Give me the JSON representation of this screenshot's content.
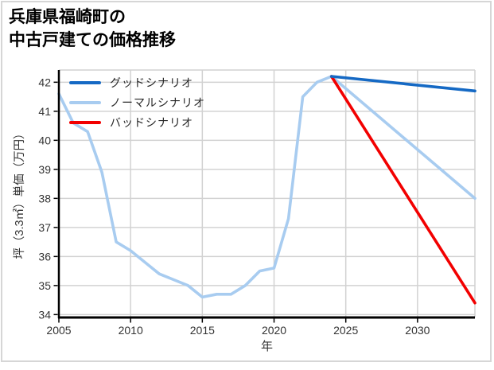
{
  "title": {
    "line1": "兵庫県福崎町の",
    "line2": "中古戸建ての価格推移"
  },
  "colors": {
    "grid": "#d2d2d2",
    "spine": "#000000",
    "minor_spine": "#d2d2d2",
    "tick_label": "#333333",
    "figure_border": "#d6d6d6",
    "background": "#ffffff"
  },
  "chart_data": {
    "type": "line",
    "title": "兵庫県福崎町の中古戸建ての価格推移",
    "xlabel": "年",
    "ylabel": "坪（3.3㎡）単価（万円）",
    "x_ticks": [
      2005,
      2010,
      2015,
      2020,
      2025,
      2030
    ],
    "y_ticks": [
      34,
      35,
      36,
      37,
      38,
      39,
      40,
      41,
      42
    ],
    "xlim": [
      2005,
      2034
    ],
    "ylim": [
      33.9,
      42.42
    ],
    "grid": true,
    "legend_position": "upper left",
    "series": [
      {
        "id": "good",
        "name": "グッドシナリオ",
        "color": "#1569c4",
        "x": [
          2024,
          2034
        ],
        "y": [
          42.2,
          41.7
        ]
      },
      {
        "id": "normal",
        "name": "ノーマルシナリオ",
        "color": "#a8ccf0",
        "x": [
          2005,
          2006,
          2007,
          2008,
          2009,
          2010,
          2011,
          2012,
          2013,
          2014,
          2015,
          2016,
          2017,
          2018,
          2019,
          2020,
          2021,
          2022,
          2023,
          2024,
          2034
        ],
        "y": [
          41.6,
          40.6,
          40.3,
          38.9,
          36.5,
          36.2,
          35.8,
          35.4,
          35.2,
          35.0,
          34.6,
          34.7,
          34.7,
          35.0,
          35.5,
          35.6,
          37.3,
          41.5,
          42.0,
          42.2,
          38.0
        ]
      },
      {
        "id": "bad",
        "name": "バッドシナリオ",
        "color": "#f20000",
        "x": [
          2024,
          2034
        ],
        "y": [
          42.2,
          34.4
        ]
      }
    ]
  }
}
